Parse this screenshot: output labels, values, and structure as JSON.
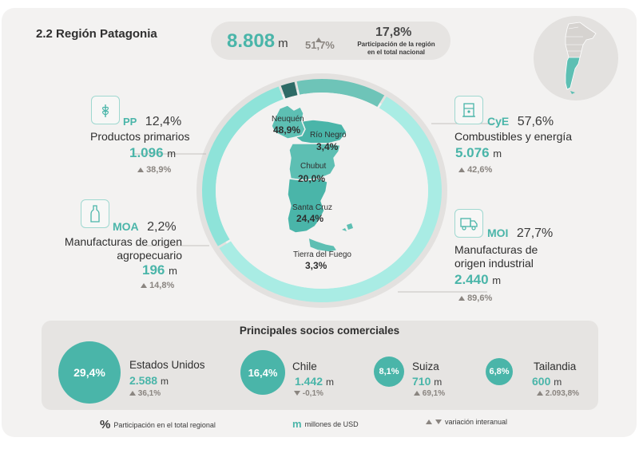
{
  "title": "2.2 Región Patagonia",
  "summary": {
    "total": "8.808",
    "total_unit": "m",
    "variation": "51,7%",
    "share": "17,8%",
    "share_caption_1": "Participación de la región",
    "share_caption_2": "en el total nacional"
  },
  "sectors": {
    "pp": {
      "abbr": "PP",
      "pct": "12,4%",
      "name": "Productos primarios",
      "value": "1.096",
      "unit": "m",
      "variation": "38,9%"
    },
    "moa": {
      "abbr": "MOA",
      "pct": "2,2%",
      "name_1": "Manufacturas de origen",
      "name_2": "agropecuario",
      "value": "196",
      "unit": "m",
      "variation": "14,8%"
    },
    "cye": {
      "abbr": "CyE",
      "pct": "57,6%",
      "name": "Combustibles y energía",
      "value": "5.076",
      "unit": "m",
      "variation": "42,6%"
    },
    "moi": {
      "abbr": "MOI",
      "pct": "27,7%",
      "name_1": "Manufacturas de",
      "name_2": "origen industrial",
      "value": "2.440",
      "unit": "m",
      "variation": "89,6%"
    }
  },
  "provinces": [
    {
      "name": "Neuquén",
      "pct": "48,9%"
    },
    {
      "name": "Río Negro",
      "pct": "3,4%"
    },
    {
      "name": "Chubut",
      "pct": "20,0%"
    },
    {
      "name": "Santa Cruz",
      "pct": "24,4%"
    },
    {
      "name": "Tierra del Fuego",
      "pct": "3,3%"
    }
  ],
  "partners": {
    "title": "Principales socios comerciales",
    "items": [
      {
        "pct": "29,4%",
        "name": "Estados Unidos",
        "value": "2.588",
        "unit": "m",
        "variation": "36,1%",
        "direction": "up"
      },
      {
        "pct": "16,4%",
        "name": "Chile",
        "value": "1.442",
        "unit": "m",
        "variation": "-0,1%",
        "direction": "down"
      },
      {
        "pct": "8,1%",
        "name": "Suiza",
        "value": "710",
        "unit": "m",
        "variation": "69,1%",
        "direction": "up"
      },
      {
        "pct": "6,8%",
        "name": "Tailandia",
        "value": "600",
        "unit": "m",
        "variation": "2.093,8%",
        "direction": "up"
      }
    ]
  },
  "legend": {
    "pct_symbol": "%",
    "pct_text": "Participación en el total regional",
    "m_symbol": "m",
    "m_text": "millones de USD",
    "var_text": "variación interanual"
  },
  "chart_data": {
    "type": "pie",
    "categories": [
      "Combustibles y energía",
      "Manufacturas de origen industrial",
      "Manufacturas de origen agropecuario",
      "Productos primarios"
    ],
    "values": [
      57.6,
      27.7,
      2.2,
      12.4
    ],
    "colors": [
      "#a9ece4",
      "#8ee3d9",
      "#2e6b66",
      "#6ec4b8"
    ]
  },
  "colors": {
    "accent": "#4ab5a9",
    "map_fill": "#5dbfb3",
    "ring_track": "#e3e1df"
  }
}
